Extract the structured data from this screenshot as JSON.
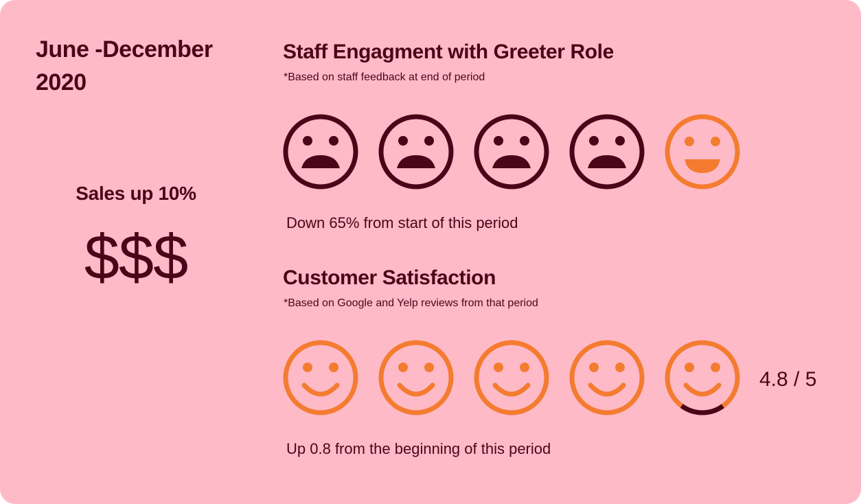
{
  "period": "June -December 2020",
  "sales": {
    "label": "Sales up 10%",
    "symbol": "$$$"
  },
  "staff_engagement": {
    "title": "Staff Engagment with Greeter Role",
    "note": "*Based on staff feedback at end of period",
    "faces": [
      "sad",
      "sad",
      "sad",
      "sad",
      "happy"
    ],
    "summary": "Down 65% from start of this period"
  },
  "customer_satisfaction": {
    "title": "Customer Satisfaction",
    "note": "*Based on Google and Yelp reviews from that period",
    "rating": 4.8,
    "rating_max": 5,
    "rating_text": "4.8 / 5",
    "summary": "Up 0.8 from the beginning of this period"
  },
  "colors": {
    "background": "#ffbac8",
    "text": "#4a0618",
    "accent": "#f47c30"
  },
  "icons": {
    "sad": "sad-face-icon",
    "happy": "happy-face-icon",
    "smile": "smile-face-icon"
  }
}
